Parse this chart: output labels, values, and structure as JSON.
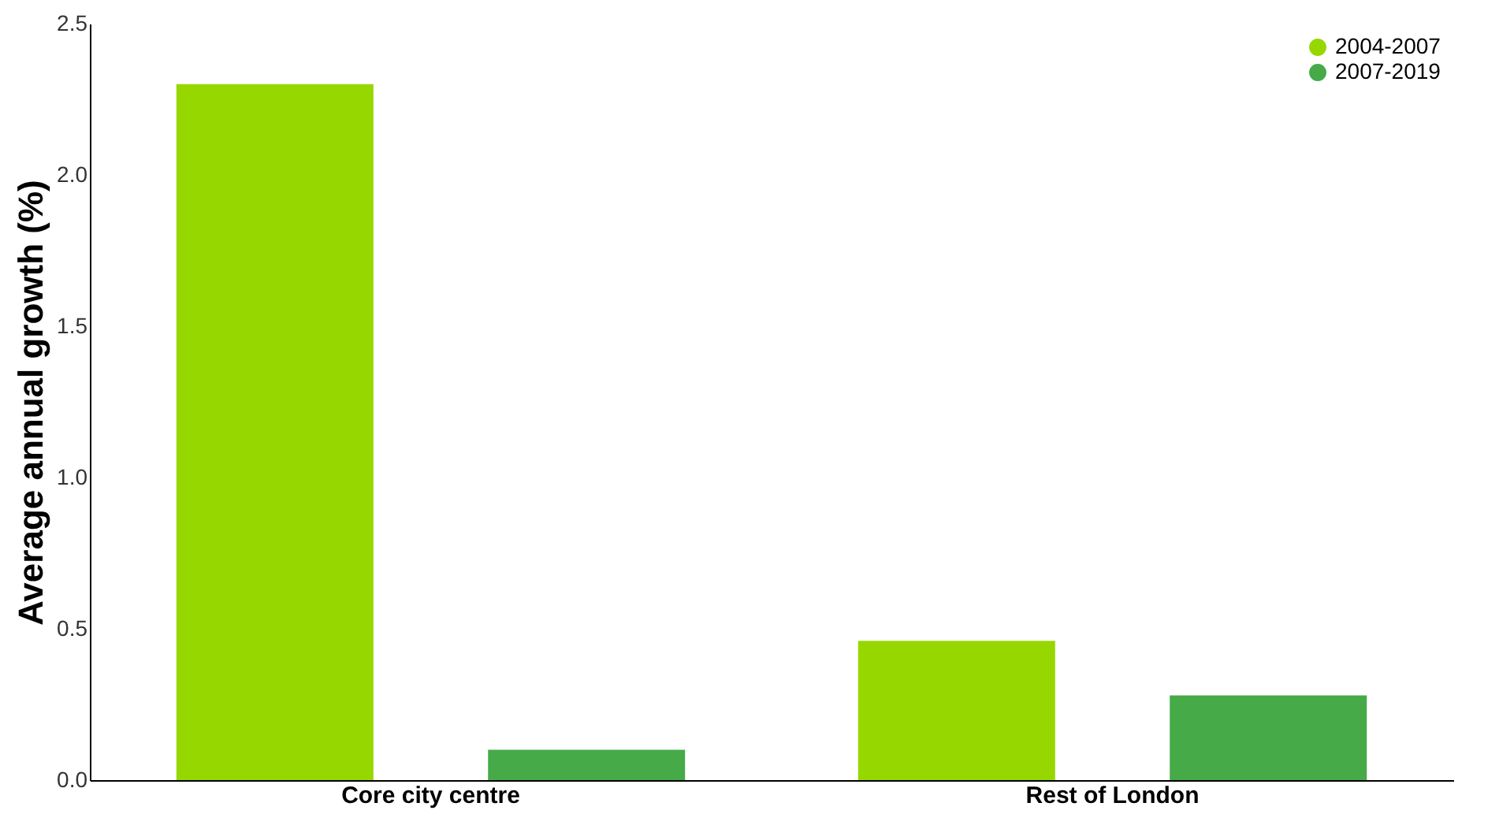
{
  "chart_data": {
    "type": "bar",
    "ylabel": "Average annual growth (%)",
    "categories": [
      "Core city centre",
      "Rest of London"
    ],
    "series": [
      {
        "name": "2004-2007",
        "color": "#97d700",
        "values": [
          2.3,
          0.46
        ]
      },
      {
        "name": "2007-2019",
        "color": "#46aa48",
        "values": [
          0.1,
          0.28
        ]
      }
    ],
    "ylim": [
      0,
      2.5
    ],
    "yticks": [
      {
        "value": 0,
        "label": "0.0"
      },
      {
        "value": 0.5,
        "label": "0.5"
      },
      {
        "value": 1,
        "label": "1.0"
      },
      {
        "value": 1.5,
        "label": "1.5"
      },
      {
        "value": 2,
        "label": "2.0"
      },
      {
        "value": 2.5,
        "label": "2.5"
      }
    ],
    "grid": false,
    "legend": "top right"
  }
}
